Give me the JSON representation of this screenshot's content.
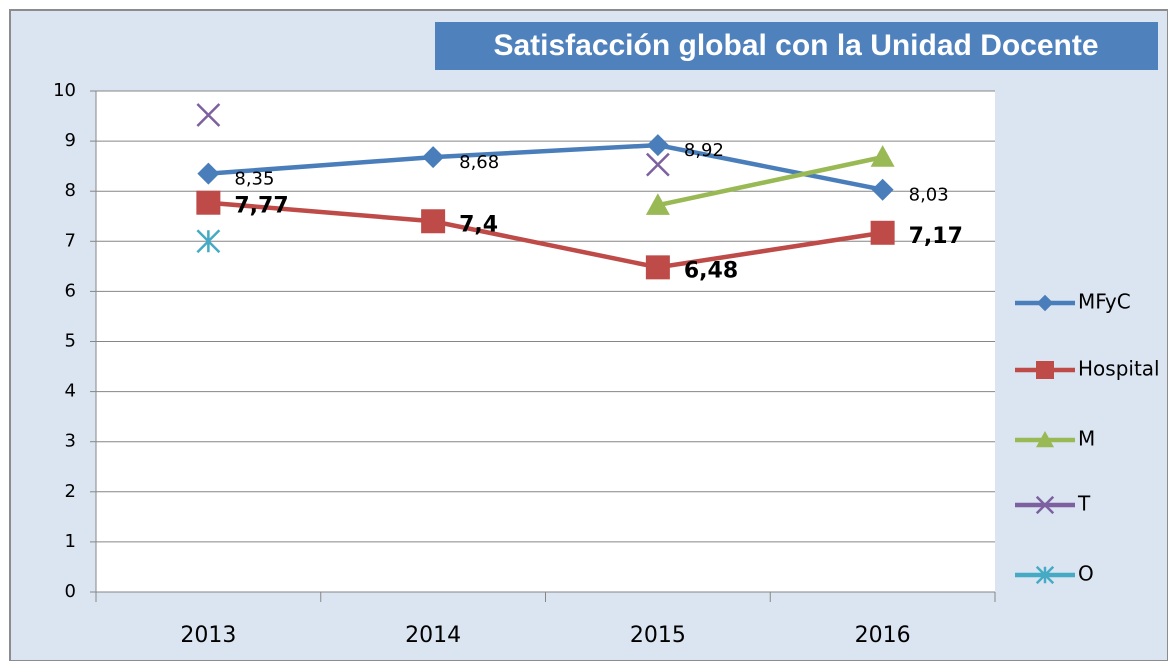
{
  "chart_data": {
    "type": "line",
    "title": "Satisfacción global con la Unidad Docente",
    "categories": [
      "2013",
      "2014",
      "2015",
      "2016"
    ],
    "series": [
      {
        "name": "MFyC",
        "color": "#4a7ebb",
        "marker": "diamond",
        "values": [
          8.35,
          8.68,
          8.92,
          8.03
        ],
        "value_labels": [
          "8,35",
          "8,68",
          "8,92",
          "8,03"
        ]
      },
      {
        "name": "Hospital",
        "color": "#be4b48",
        "marker": "square",
        "values": [
          7.77,
          7.4,
          6.48,
          7.17
        ],
        "value_labels": [
          "7,77",
          "7,4",
          "6,48",
          "7,17"
        ]
      },
      {
        "name": "M",
        "color": "#98b954",
        "marker": "triangle",
        "values": [
          null,
          null,
          7.72,
          8.68
        ]
      },
      {
        "name": "T",
        "color": "#7d60a0",
        "marker": "x",
        "values": [
          9.52,
          null,
          8.53,
          null
        ]
      },
      {
        "name": "O",
        "color": "#46aac5",
        "marker": "star",
        "values": [
          7.0,
          null,
          null,
          null
        ]
      }
    ],
    "ylim": [
      0,
      10
    ],
    "yticks": [
      0,
      1,
      2,
      3,
      4,
      5,
      6,
      7,
      8,
      9,
      10
    ],
    "grid": true,
    "legend": "right"
  }
}
